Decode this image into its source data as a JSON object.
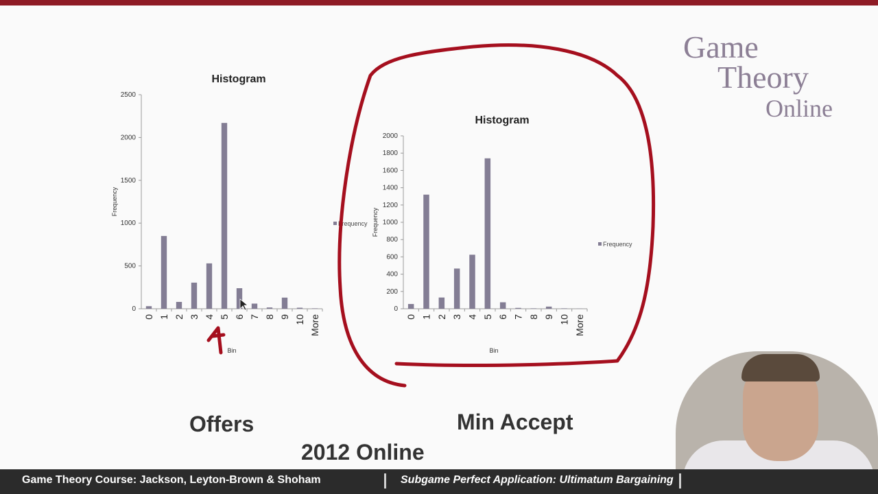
{
  "slide": {
    "caption_offers": "Offers",
    "caption_min_accept": "Min Accept",
    "caption_year": "2012 Online"
  },
  "logo": {
    "line1": "Game",
    "line2": "Theory",
    "line3": "Online"
  },
  "footer": {
    "left_text": "Game Theory Course: Jackson, Leyton-Brown & Shoham",
    "right_text": "Subgame Perfect Application: Ultimatum Bargaining"
  },
  "colors": {
    "bar": "#837d94",
    "annotation": "#a50f1e",
    "topbar": "#8e1b25",
    "footer_bg": "#2b2b2b"
  },
  "chart_data": [
    {
      "type": "bar",
      "title": "Histogram",
      "xlabel": "Bin",
      "ylabel": "Frequency",
      "legend": "Frequency",
      "legend_position": "right",
      "categories": [
        "0",
        "1",
        "2",
        "3",
        "4",
        "5",
        "6",
        "7",
        "8",
        "9",
        "10",
        "More"
      ],
      "ylim": [
        0,
        2500
      ],
      "yticks": [
        "0",
        "500",
        "1000",
        "1500",
        "2000",
        "2500"
      ],
      "series": [
        {
          "name": "Frequency",
          "values": [
            30,
            850,
            80,
            305,
            530,
            2170,
            240,
            60,
            15,
            130,
            12,
            5
          ]
        }
      ]
    },
    {
      "type": "bar",
      "title": "Histogram",
      "xlabel": "Bin",
      "ylabel": "Frequency",
      "legend": "Frequency",
      "legend_position": "right",
      "categories": [
        "0",
        "1",
        "2",
        "3",
        "4",
        "5",
        "6",
        "7",
        "8",
        "9",
        "10",
        "More"
      ],
      "ylim": [
        0,
        2000
      ],
      "yticks": [
        "0",
        "200",
        "400",
        "600",
        "800",
        "1000",
        "1200",
        "1400",
        "1600",
        "1800",
        "2000"
      ],
      "series": [
        {
          "name": "Frequency",
          "values": [
            55,
            1320,
            130,
            465,
            625,
            1740,
            75,
            10,
            5,
            25,
            5,
            2
          ]
        }
      ]
    }
  ]
}
